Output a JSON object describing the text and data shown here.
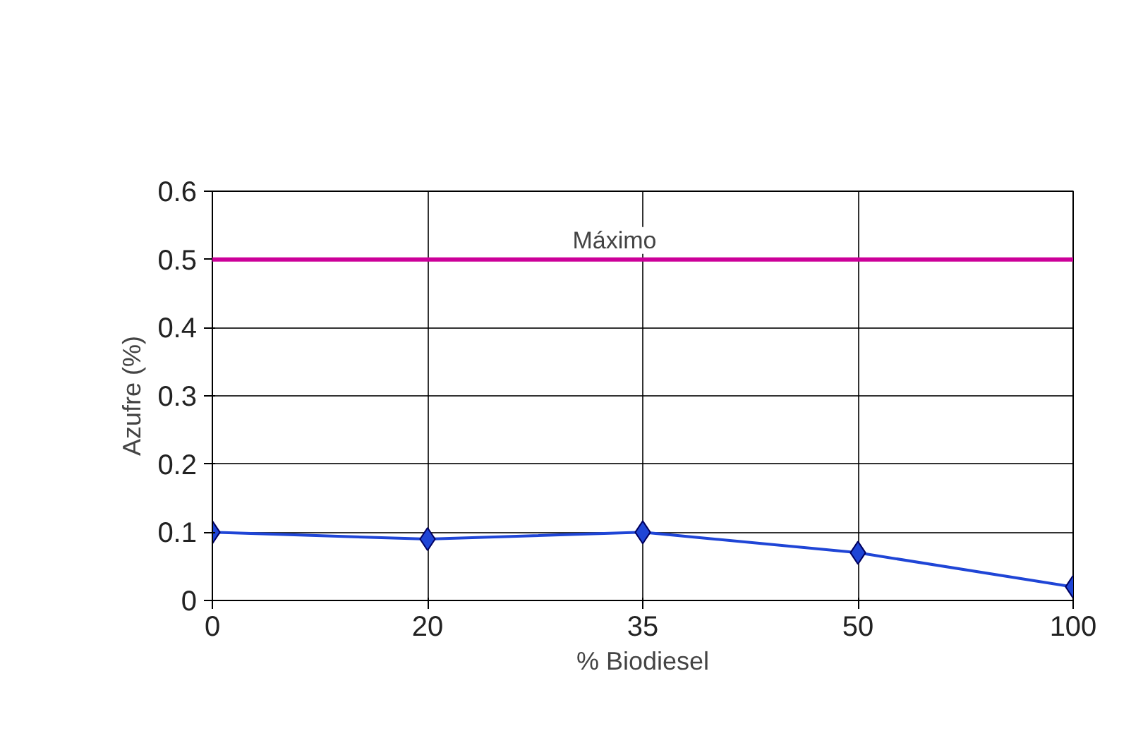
{
  "chart_data": {
    "type": "line",
    "xlabel": "% Biodiesel",
    "ylabel": "Azufre (%)",
    "categories": [
      "0",
      "20",
      "35",
      "50",
      "100"
    ],
    "series": [
      {
        "color": "#1f45d6",
        "values": [
          0.1,
          0.09,
          0.1,
          0.07,
          0.02
        ]
      }
    ],
    "ylim": [
      0,
      0.6
    ],
    "yticks": [
      0,
      0.1,
      0.2,
      0.3,
      0.4,
      0.5,
      0.6
    ],
    "ref_lines": [
      {
        "axis": "y",
        "value": 0.5,
        "label": "Máximo",
        "color": "#cc0099"
      }
    ],
    "grid": true,
    "marker": "diamond"
  }
}
